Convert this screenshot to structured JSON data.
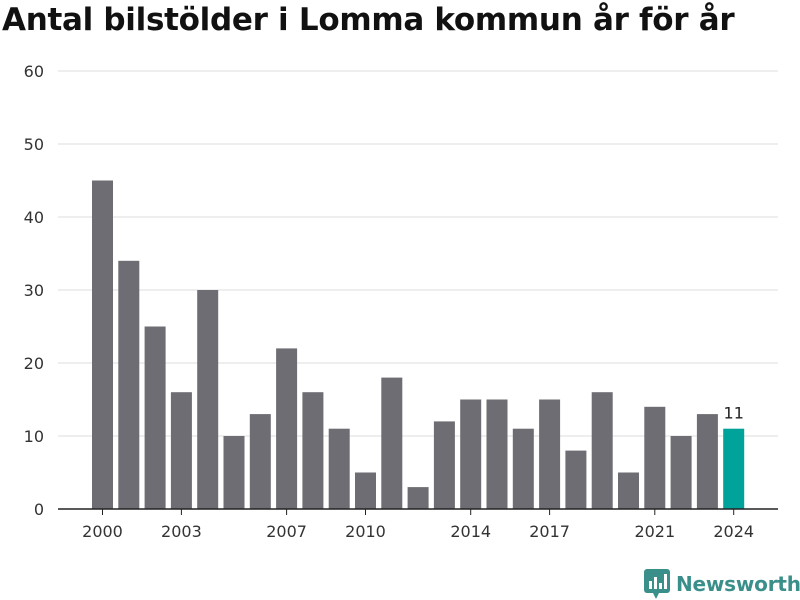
{
  "chart_data": {
    "type": "bar",
    "title": "Antal bilstölder i Lomma kommun år för år",
    "xlabel": "",
    "ylabel": "",
    "categories": [
      2000,
      2001,
      2002,
      2003,
      2004,
      2005,
      2006,
      2007,
      2008,
      2009,
      2010,
      2011,
      2012,
      2013,
      2014,
      2015,
      2016,
      2017,
      2018,
      2019,
      2020,
      2021,
      2022,
      2023,
      2024
    ],
    "values": [
      45,
      34,
      25,
      16,
      30,
      10,
      13,
      22,
      16,
      11,
      5,
      18,
      3,
      12,
      15,
      15,
      11,
      15,
      8,
      16,
      5,
      14,
      10,
      13,
      11
    ],
    "x_tick_labels": [
      "2000",
      "2003",
      "2007",
      "2010",
      "2014",
      "2017",
      "2021",
      "2024"
    ],
    "y_ticks": [
      "0",
      "10",
      "20",
      "30",
      "40",
      "50",
      "60"
    ],
    "ylim": [
      0,
      60
    ],
    "grid": true,
    "colors": {
      "bar": "#6e6d73",
      "highlight": "#00a39a",
      "grid": "#dddddd",
      "axis": "#222222"
    },
    "highlight_category": 2024,
    "data_labels": [
      {
        "category": 2024,
        "text": "11"
      }
    ]
  },
  "branding": {
    "name": "Newsworthy",
    "icon": "newsworthy-logo-icon"
  }
}
